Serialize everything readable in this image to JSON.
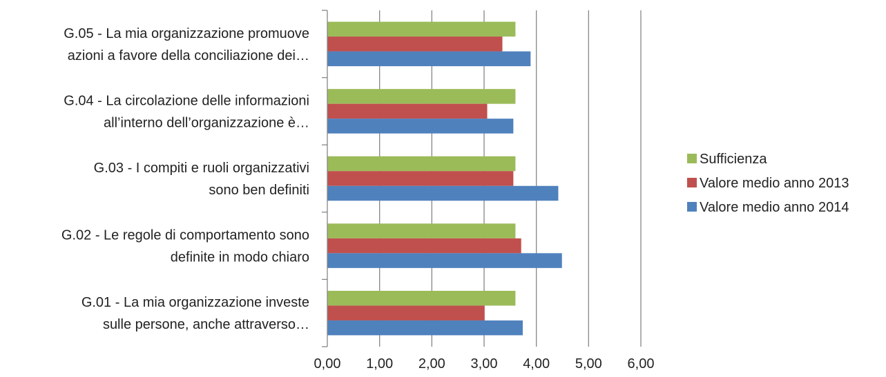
{
  "chart_data": {
    "type": "bar",
    "orientation": "horizontal",
    "categories": [
      [
        "G.01 - La mia organizzazione investe",
        "sulle persone, anche attraverso…"
      ],
      [
        "G.02 - Le regole di comportamento sono",
        "definite in modo chiaro"
      ],
      [
        "G.03 - I compiti e ruoli organizzativi",
        "sono ben definiti"
      ],
      [
        "G.04 - La circolazione delle informazioni",
        "all’interno dell’organizzazione è…"
      ],
      [
        "G.05 - La mia organizzazione promuove",
        "azioni a favore della conciliazione dei…"
      ]
    ],
    "series": [
      {
        "name": "Valore medio anno 2014",
        "color": "#4F81BD",
        "values": [
          3.74,
          4.49,
          4.42,
          3.56,
          3.89
        ]
      },
      {
        "name": "Valore medio anno 2013",
        "color": "#C0504D",
        "values": [
          3.01,
          3.71,
          3.56,
          3.06,
          3.35
        ]
      },
      {
        "name": "Sufficienza",
        "color": "#9BBB59",
        "values": [
          3.6,
          3.6,
          3.6,
          3.6,
          3.6
        ]
      }
    ],
    "xlim": [
      0,
      6
    ],
    "xticks": [
      "0,00",
      "1,00",
      "2,00",
      "3,00",
      "4,00",
      "5,00",
      "6,00"
    ],
    "legend_order": [
      "Sufficienza",
      "Valore medio anno 2013",
      "Valore medio anno 2014"
    ],
    "legend_position": "right",
    "grid": "vertical",
    "title": "",
    "xlabel": "",
    "ylabel": ""
  }
}
